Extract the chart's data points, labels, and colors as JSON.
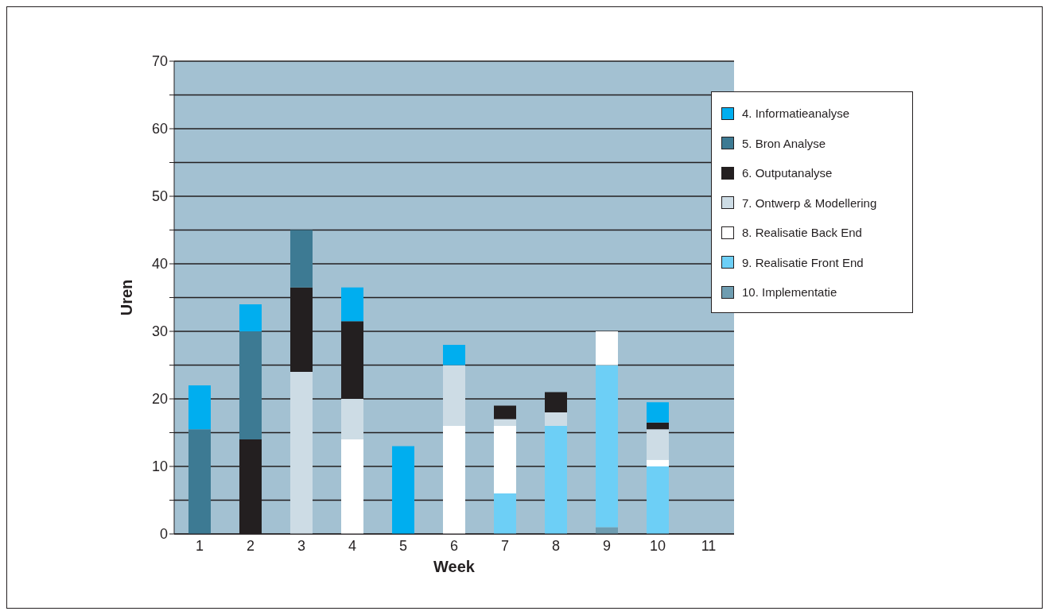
{
  "chart_data": {
    "type": "bar",
    "stacked": true,
    "xlabel": "Week",
    "ylabel": "Uren",
    "categories": [
      "1",
      "2",
      "3",
      "4",
      "5",
      "6",
      "7",
      "8",
      "9",
      "10",
      "11"
    ],
    "series": [
      {
        "name": "10. Implementatie",
        "color": "#6f9db1",
        "values": [
          0,
          0,
          0,
          0,
          0,
          0,
          0,
          0,
          1,
          0,
          0
        ]
      },
      {
        "name": "9. Realisatie Front End",
        "color": "#6dcff6",
        "values": [
          0,
          0,
          0,
          0,
          0,
          0,
          6,
          16,
          24,
          10,
          0
        ]
      },
      {
        "name": "8. Realisatie Back End",
        "color": "#ffffff",
        "values": [
          0,
          0,
          0,
          14,
          0,
          16,
          10,
          0,
          5,
          1,
          0
        ]
      },
      {
        "name": "7. Ontwerp & Modellering",
        "color": "#cddce5",
        "values": [
          0,
          0,
          24,
          6,
          0,
          9,
          1,
          2,
          0,
          4.5,
          0
        ]
      },
      {
        "name": "6. Outputanalyse",
        "color": "#231f20",
        "values": [
          0,
          14,
          12.5,
          11.5,
          0,
          0,
          2,
          3,
          0,
          1,
          0
        ]
      },
      {
        "name": "5. Bron Analyse",
        "color": "#3d7a93",
        "values": [
          15.5,
          16,
          8.5,
          0,
          0,
          0,
          0,
          0,
          0,
          0,
          0
        ]
      },
      {
        "name": "4. Informatieanalyse",
        "color": "#00aeef",
        "values": [
          6.5,
          4,
          0,
          5,
          13,
          3,
          0,
          0,
          0,
          3,
          0
        ]
      }
    ],
    "ylim": [
      0,
      70
    ],
    "yticks": [
      0,
      {
        "value": 5,
        "label": null
      },
      10,
      {
        "value": 15,
        "label": null
      },
      20,
      {
        "value": 25,
        "label": null
      },
      30,
      {
        "value": 35,
        "label": null
      },
      40,
      {
        "value": 45,
        "label": null
      },
      50,
      {
        "value": 55,
        "label": null
      },
      60,
      {
        "value": 65,
        "label": null
      },
      70
    ],
    "grid": "y",
    "legend": "top right"
  }
}
